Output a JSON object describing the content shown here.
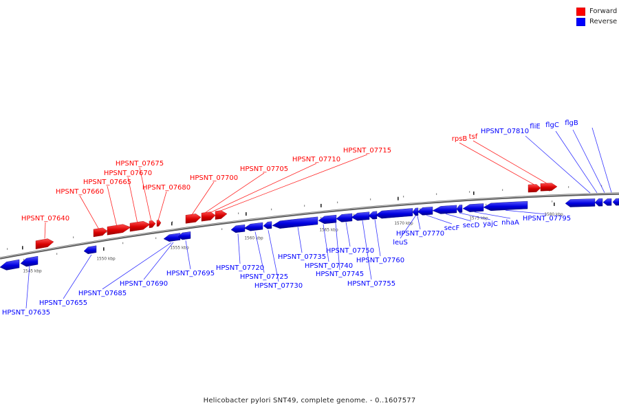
{
  "legend": {
    "forward_label": "Forward",
    "reverse_label": "Reverse",
    "forward_color": "#ff0000",
    "reverse_color": "#0000ff"
  },
  "caption": "Helicobacter pylori SNT49, complete genome. - 0..1607577",
  "colors": {
    "backbone": "#7a7a7a",
    "forward": "#ff0000",
    "reverse": "#0000ff"
  },
  "scale": {
    "unit": "kbp",
    "major_ticks": [
      "1545 kbp",
      "1550 kbp",
      "1555 kbp",
      "1560 kbp",
      "1565 kbp",
      "1570 kbp",
      "1575 kbp",
      "1580 kbp"
    ]
  },
  "forward_genes": [
    "HPSNT_07640",
    "HPSNT_07660",
    "HPSNT_07665",
    "HPSNT_07670",
    "HPSNT_07675",
    "HPSNT_07680",
    "HPSNT_07700",
    "HPSNT_07705",
    "HPSNT_07710",
    "HPSNT_07715",
    "rpsB",
    "tsf"
  ],
  "reverse_genes": [
    "HPSNT_07635",
    "HPSNT_07655",
    "HPSNT_07685",
    "HPSNT_07690",
    "HPSNT_07695",
    "HPSNT_07720",
    "HPSNT_07725",
    "HPSNT_07730",
    "HPSNT_07735",
    "HPSNT_07740",
    "HPSNT_07745",
    "HPSNT_07750",
    "HPSNT_07755",
    "HPSNT_07760",
    "leuS",
    "HPSNT_07770",
    "secF",
    "secD",
    "yajC",
    "nhaA",
    "HPSNT_07795",
    "HPSNT_07810",
    "fliE",
    "flgC",
    "flgB"
  ]
}
